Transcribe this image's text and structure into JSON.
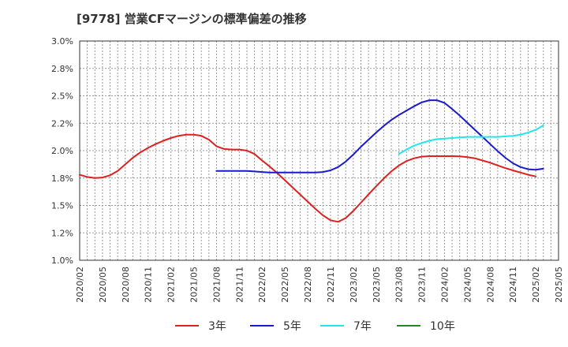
{
  "chart_data": {
    "type": "line",
    "title": "[9778]  営業CFマージンの標準偏差の推移",
    "xlabel": "",
    "ylabel": "",
    "ylim": [
      1.0,
      3.0
    ],
    "y_ticks": [
      "1.0%",
      "1.2%",
      "1.5%",
      "1.8%",
      "2.0%",
      "2.2%",
      "2.5%",
      "2.8%",
      "3.0%"
    ],
    "x_ticks": [
      "2020/02",
      "2020/05",
      "2020/08",
      "2020/11",
      "2021/02",
      "2021/05",
      "2021/08",
      "2021/11",
      "2022/02",
      "2022/05",
      "2022/08",
      "2022/11",
      "2023/02",
      "2023/05",
      "2023/08",
      "2023/11",
      "2024/02",
      "2024/05",
      "2024/08",
      "2024/11",
      "2025/02",
      "2025/05"
    ],
    "grid": true,
    "legend_position": "bottom",
    "series": [
      {
        "name": "3年",
        "color": "#dd2020",
        "points": [
          [
            "2020/02",
            1.78
          ],
          [
            "2020/03",
            1.76
          ],
          [
            "2020/04",
            1.75
          ],
          [
            "2020/05",
            1.755
          ],
          [
            "2020/06",
            1.775
          ],
          [
            "2020/07",
            1.815
          ],
          [
            "2020/08",
            1.875
          ],
          [
            "2020/09",
            1.935
          ],
          [
            "2020/10",
            1.985
          ],
          [
            "2020/11",
            2.025
          ],
          [
            "2020/12",
            2.06
          ],
          [
            "2021/01",
            2.09
          ],
          [
            "2021/02",
            2.115
          ],
          [
            "2021/03",
            2.135
          ],
          [
            "2021/04",
            2.145
          ],
          [
            "2021/05",
            2.145
          ],
          [
            "2021/06",
            2.135
          ],
          [
            "2021/07",
            2.1
          ],
          [
            "2021/08",
            2.04
          ],
          [
            "2021/09",
            2.015
          ],
          [
            "2021/10",
            2.01
          ],
          [
            "2021/11",
            2.01
          ],
          [
            "2021/12",
            2.0
          ],
          [
            "2022/01",
            1.97
          ],
          [
            "2022/02",
            1.91
          ],
          [
            "2022/03",
            1.855
          ],
          [
            "2022/04",
            1.795
          ],
          [
            "2022/05",
            1.73
          ],
          [
            "2022/06",
            1.665
          ],
          [
            "2022/07",
            1.6
          ],
          [
            "2022/08",
            1.535
          ],
          [
            "2022/09",
            1.47
          ],
          [
            "2022/10",
            1.41
          ],
          [
            "2022/11",
            1.365
          ],
          [
            "2022/12",
            1.35
          ],
          [
            "2023/01",
            1.385
          ],
          [
            "2023/02",
            1.45
          ],
          [
            "2023/03",
            1.525
          ],
          [
            "2023/04",
            1.6
          ],
          [
            "2023/05",
            1.675
          ],
          [
            "2023/06",
            1.745
          ],
          [
            "2023/07",
            1.81
          ],
          [
            "2023/08",
            1.865
          ],
          [
            "2023/09",
            1.905
          ],
          [
            "2023/10",
            1.93
          ],
          [
            "2023/11",
            1.945
          ],
          [
            "2023/12",
            1.95
          ],
          [
            "2024/01",
            1.95
          ],
          [
            "2024/02",
            1.95
          ],
          [
            "2024/03",
            1.95
          ],
          [
            "2024/04",
            1.948
          ],
          [
            "2024/05",
            1.94
          ],
          [
            "2024/06",
            1.93
          ],
          [
            "2024/07",
            1.91
          ],
          [
            "2024/08",
            1.89
          ],
          [
            "2024/09",
            1.865
          ],
          [
            "2024/10",
            1.84
          ],
          [
            "2024/11",
            1.82
          ],
          [
            "2024/12",
            1.8
          ],
          [
            "2025/01",
            1.78
          ],
          [
            "2025/02",
            1.765
          ]
        ]
      },
      {
        "name": "5年",
        "color": "#1a1acc",
        "points": [
          [
            "2021/08",
            1.815
          ],
          [
            "2021/09",
            1.815
          ],
          [
            "2021/10",
            1.815
          ],
          [
            "2021/11",
            1.815
          ],
          [
            "2021/12",
            1.815
          ],
          [
            "2022/01",
            1.81
          ],
          [
            "2022/02",
            1.805
          ],
          [
            "2022/03",
            1.8
          ],
          [
            "2022/04",
            1.8
          ],
          [
            "2022/05",
            1.8
          ],
          [
            "2022/06",
            1.8
          ],
          [
            "2022/07",
            1.8
          ],
          [
            "2022/08",
            1.8
          ],
          [
            "2022/09",
            1.8
          ],
          [
            "2022/10",
            1.805
          ],
          [
            "2022/11",
            1.82
          ],
          [
            "2022/12",
            1.85
          ],
          [
            "2023/01",
            1.9
          ],
          [
            "2023/02",
            1.965
          ],
          [
            "2023/03",
            2.035
          ],
          [
            "2023/04",
            2.1
          ],
          [
            "2023/05",
            2.165
          ],
          [
            "2023/06",
            2.225
          ],
          [
            "2023/07",
            2.28
          ],
          [
            "2023/08",
            2.325
          ],
          [
            "2023/09",
            2.365
          ],
          [
            "2023/10",
            2.405
          ],
          [
            "2023/11",
            2.44
          ],
          [
            "2023/12",
            2.46
          ],
          [
            "2024/01",
            2.46
          ],
          [
            "2024/02",
            2.435
          ],
          [
            "2024/03",
            2.38
          ],
          [
            "2024/04",
            2.32
          ],
          [
            "2024/05",
            2.255
          ],
          [
            "2024/06",
            2.19
          ],
          [
            "2024/07",
            2.125
          ],
          [
            "2024/08",
            2.06
          ],
          [
            "2024/09",
            1.995
          ],
          [
            "2024/10",
            1.935
          ],
          [
            "2024/11",
            1.885
          ],
          [
            "2024/12",
            1.85
          ],
          [
            "2025/01",
            1.83
          ],
          [
            "2025/02",
            1.825
          ],
          [
            "2025/03",
            1.835
          ]
        ]
      },
      {
        "name": "7年",
        "color": "#22e6ee",
        "points": [
          [
            "2023/08",
            1.97
          ],
          [
            "2023/09",
            2.01
          ],
          [
            "2023/10",
            2.045
          ],
          [
            "2023/11",
            2.07
          ],
          [
            "2023/12",
            2.09
          ],
          [
            "2024/01",
            2.105
          ],
          [
            "2024/02",
            2.11
          ],
          [
            "2024/03",
            2.115
          ],
          [
            "2024/04",
            2.12
          ],
          [
            "2024/05",
            2.125
          ],
          [
            "2024/06",
            2.125
          ],
          [
            "2024/07",
            2.125
          ],
          [
            "2024/08",
            2.125
          ],
          [
            "2024/09",
            2.125
          ],
          [
            "2024/10",
            2.13
          ],
          [
            "2024/11",
            2.135
          ],
          [
            "2024/12",
            2.145
          ],
          [
            "2025/01",
            2.165
          ],
          [
            "2025/02",
            2.19
          ],
          [
            "2025/03",
            2.23
          ]
        ]
      },
      {
        "name": "10年",
        "color": "#228822",
        "points": []
      }
    ]
  }
}
